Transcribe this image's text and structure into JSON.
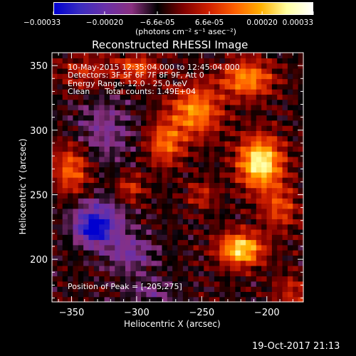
{
  "chart_data": {
    "type": "heatmap",
    "title": "Reconstructed RHESSI Image",
    "xlabel": "Heliocentric X (arcsec)",
    "ylabel": "Heliocentric Y (arcsec)",
    "xlim": [
      -365,
      -172
    ],
    "ylim": [
      167,
      360
    ],
    "x_ticks": [
      -350,
      -300,
      -250,
      -200
    ],
    "y_ticks": [
      200,
      250,
      300,
      350
    ],
    "colorbar": {
      "ticks": [
        "-0.00033",
        "-0.00020",
        "-6.6e-05",
        "6.6e-05",
        "0.00020",
        "0.00033"
      ],
      "tick_values": [
        -0.00033,
        -0.0002,
        -6.6e-05,
        6.6e-05,
        0.0002,
        0.00033
      ],
      "range": [
        -0.00033,
        0.00033
      ],
      "units": "(photons cm⁻² s⁻¹ asec⁻²)",
      "colormap": [
        "#0000d0",
        "#3a2cc0",
        "#6a30a8",
        "#8a3080",
        "#000000",
        "#800000",
        "#d02000",
        "#ff6000",
        "#ffb000",
        "#ffffa0",
        "#ffffff"
      ]
    },
    "peak": [
      -205,
      275
    ],
    "annotations": [
      "10-May-2015 12:35:04.000 to 12:45:04.000",
      "Detectors: 3F 5F 6F 7F 8F 9F, Att 0",
      "Energy Range: 12.0 - 25.0 keV",
      "Clean      Total counts: 1.49E+04"
    ],
    "peak_label": "Position of Peak = [-205,275]",
    "footer": "19-Oct-2017 21:13",
    "sources": [
      {
        "x": -205,
        "y": 275,
        "amp": 0.00033,
        "sx": 12,
        "sy": 14
      },
      {
        "x": -220,
        "y": 208,
        "amp": 0.0003,
        "sx": 12,
        "sy": 9
      },
      {
        "x": -215,
        "y": 340,
        "amp": 0.00022,
        "sx": 14,
        "sy": 10
      },
      {
        "x": -255,
        "y": 315,
        "amp": 0.00022,
        "sx": 14,
        "sy": 14
      },
      {
        "x": -278,
        "y": 290,
        "amp": 0.00018,
        "sx": 10,
        "sy": 12
      },
      {
        "x": -300,
        "y": 348,
        "amp": 0.00016,
        "sx": 12,
        "sy": 8
      },
      {
        "x": -350,
        "y": 270,
        "amp": 0.00018,
        "sx": 10,
        "sy": 14
      },
      {
        "x": -305,
        "y": 255,
        "amp": 0.00012,
        "sx": 8,
        "sy": 8
      },
      {
        "x": -340,
        "y": 345,
        "amp": 0.0001,
        "sx": 14,
        "sy": 10
      },
      {
        "x": -190,
        "y": 240,
        "amp": 0.00014,
        "sx": 10,
        "sy": 12
      },
      {
        "x": -180,
        "y": 175,
        "amp": 0.0001,
        "sx": 10,
        "sy": 10
      },
      {
        "x": -250,
        "y": 250,
        "amp": 0.0001,
        "sx": 8,
        "sy": 8
      },
      {
        "x": -325,
        "y": 300,
        "amp": -0.0001,
        "sx": 16,
        "sy": 18
      },
      {
        "x": -330,
        "y": 230,
        "amp": -0.0002,
        "sx": 14,
        "sy": 12
      },
      {
        "x": -333,
        "y": 222,
        "amp": -0.00018,
        "sx": 7,
        "sy": 6
      },
      {
        "x": -305,
        "y": 205,
        "amp": -0.00012,
        "sx": 14,
        "sy": 10
      },
      {
        "x": -290,
        "y": 175,
        "amp": -8e-05,
        "sx": 14,
        "sy": 8
      }
    ]
  }
}
